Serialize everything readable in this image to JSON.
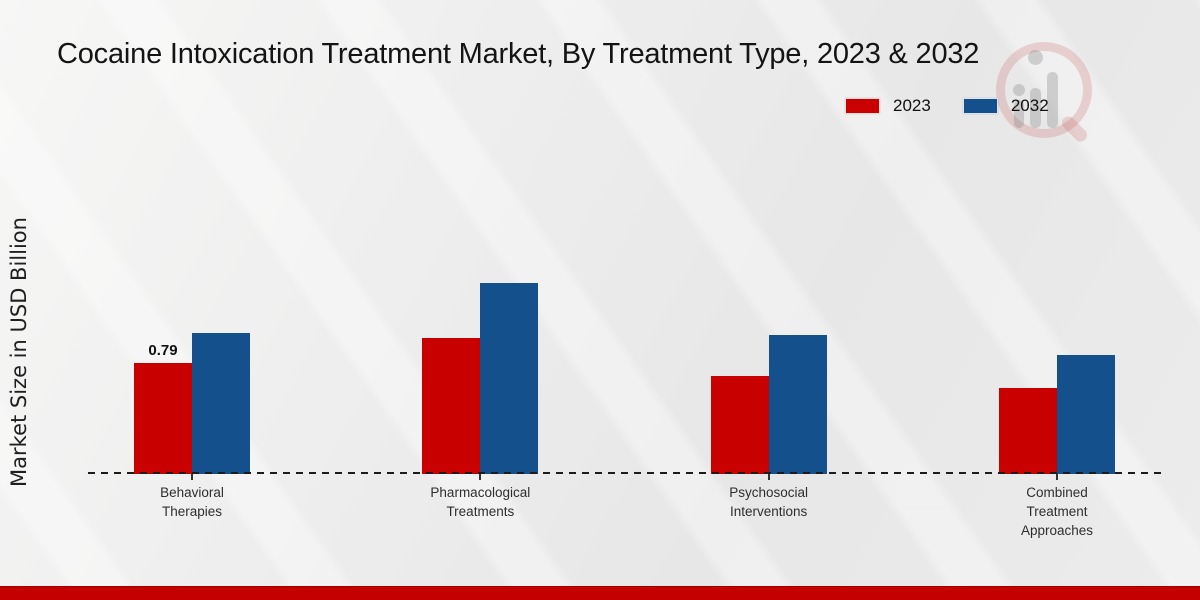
{
  "page": {
    "footer_color": "#c40100"
  },
  "chart_data": {
    "type": "bar",
    "title": "Cocaine Intoxication Treatment Market, By Treatment Type, 2023 & 2032",
    "ylabel": "Market Size in USD Billion",
    "xlabel": "",
    "categories": [
      "Behavioral Therapies",
      "Pharmacological Treatments",
      "Psychosocial Interventions",
      "Combined Treatment Approaches"
    ],
    "category_label_lines": [
      [
        "Behavioral",
        "Therapies"
      ],
      [
        "Pharmacological",
        "Treatments"
      ],
      [
        "Psychosocial",
        "Interventions"
      ],
      [
        "Combined",
        "Treatment",
        "Approaches"
      ]
    ],
    "series": [
      {
        "name": "2023",
        "color": "#c80100",
        "values": [
          0.79,
          0.97,
          0.7,
          0.61
        ]
      },
      {
        "name": "2032",
        "color": "#14508c",
        "values": [
          1.0,
          1.36,
          0.99,
          0.85
        ]
      }
    ],
    "data_labels": [
      {
        "series": "2023",
        "category_index": 0,
        "text": "0.79"
      }
    ],
    "ylim": [
      0,
      1.5
    ],
    "grid": false,
    "legend_position": "top-right",
    "baseline_style": "dashed",
    "watermark": "magnifier-bar-chart-logo"
  }
}
